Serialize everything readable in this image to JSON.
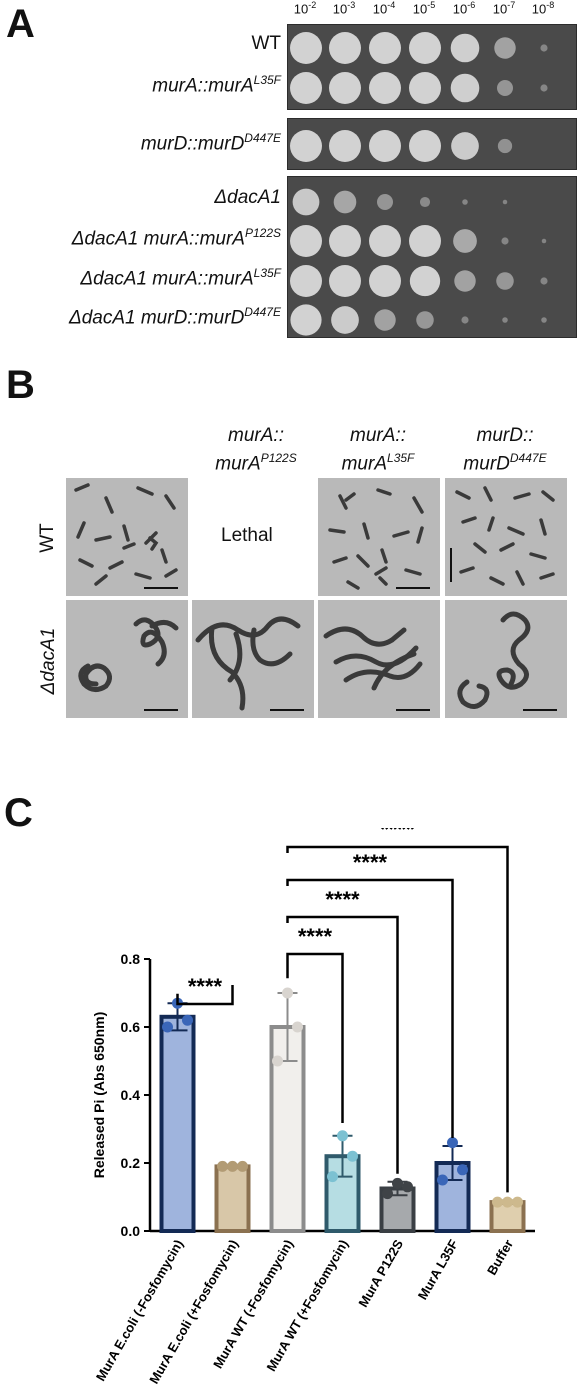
{
  "panel_a": {
    "letter": "A",
    "dilutions": [
      {
        "base": "10",
        "exp": "-2"
      },
      {
        "base": "10",
        "exp": "-3"
      },
      {
        "base": "10",
        "exp": "-4"
      },
      {
        "base": "10",
        "exp": "-5"
      },
      {
        "base": "10",
        "exp": "-6"
      },
      {
        "base": "10",
        "exp": "-7"
      },
      {
        "base": "10",
        "exp": "-8"
      }
    ],
    "strains": [
      {
        "main": "WT",
        "sup": ""
      },
      {
        "main": "murA::murA",
        "sup": "L35F"
      },
      {
        "main": "murD::murD",
        "sup": "D447E"
      },
      {
        "main": "ΔdacA1",
        "sup": ""
      },
      {
        "main": "ΔdacA1 murA::murA",
        "sup": "P122S"
      },
      {
        "main": "ΔdacA1 murA::murA",
        "sup": "L35F"
      },
      {
        "main": "ΔdacA1 murD::murD",
        "sup": "D447E"
      }
    ],
    "growth_levels": [
      [
        1,
        1,
        1,
        1,
        0.8,
        0.45,
        0.05
      ],
      [
        1,
        1,
        1,
        1,
        0.8,
        0.25,
        0.05
      ],
      [
        1,
        1,
        1,
        1,
        0.75,
        0.2,
        0
      ],
      [
        0.7,
        0.5,
        0.25,
        0.1,
        0.03,
        0.02,
        0
      ],
      [
        1,
        1,
        1,
        1,
        0.55,
        0.05,
        0.02
      ],
      [
        1,
        1,
        1,
        0.9,
        0.45,
        0.3,
        0.05
      ],
      [
        0.95,
        0.75,
        0.45,
        0.3,
        0.05,
        0.03,
        0.03
      ]
    ]
  },
  "panel_b": {
    "letter": "B",
    "columns": [
      {
        "line1": "murA::",
        "line2": "murA",
        "sup": "P122S"
      },
      {
        "line1": "murA::",
        "line2": "murA",
        "sup": "L35F"
      },
      {
        "line1": "murD::",
        "line2": "murD",
        "sup": "D447E"
      }
    ],
    "rows": [
      "WT",
      "ΔdacA1"
    ],
    "lethal_text": "Lethal"
  },
  "panel_c": {
    "letter": "C"
  },
  "chart_data": {
    "type": "bar",
    "ylabel": "Released Pi (Abs 650nm)",
    "ylim": [
      0,
      0.8
    ],
    "yticks": [
      "0.0",
      "0.2",
      "0.4",
      "0.6",
      "0.8"
    ],
    "categories": [
      "MurA E.coli (-Fosfomycin)",
      "MurA E.coli (+Fosfomycin)",
      "MurA WT (-Fosfomycin)",
      "MurA WT (+Fosfomycin)",
      "MurA P122S",
      "MurA L35F",
      "Buffer"
    ],
    "values": [
      0.63,
      0.19,
      0.6,
      0.22,
      0.125,
      0.2,
      0.085
    ],
    "errors": [
      0.04,
      0.005,
      0.1,
      0.06,
      0.02,
      0.05,
      0.005
    ],
    "points": [
      [
        0.67,
        0.6,
        0.62
      ],
      [
        0.19,
        0.19,
        0.19
      ],
      [
        0.7,
        0.5,
        0.6
      ],
      [
        0.28,
        0.16,
        0.22
      ],
      [
        0.14,
        0.11,
        0.13
      ],
      [
        0.26,
        0.15,
        0.18
      ],
      [
        0.085,
        0.085,
        0.085
      ]
    ],
    "colors": {
      "fill": [
        "#9fb4dd",
        "#d8c7a8",
        "#f1efec",
        "#b6dde3",
        "#a6a9ac",
        "#9fb4dd",
        "#dfcfae"
      ],
      "edge": [
        "#132a55",
        "#8b7150",
        "#8c8c8c",
        "#2f5a6b",
        "#3a3f44",
        "#132a55",
        "#8b7150"
      ],
      "dot": [
        "#3a66b8",
        "#b29b74",
        "#d8d4cf",
        "#7cc1d2",
        "#3f4347",
        "#3a66b8",
        "#cdb98d"
      ]
    },
    "comparisons": [
      {
        "from": 0,
        "to": 1,
        "label": "****"
      },
      {
        "from": 2,
        "to": 3,
        "label": "****"
      },
      {
        "from": 2,
        "to": 4,
        "label": "****"
      },
      {
        "from": 2,
        "to": 5,
        "label": "****"
      },
      {
        "from": 2,
        "to": 6,
        "label": "****"
      }
    ]
  }
}
